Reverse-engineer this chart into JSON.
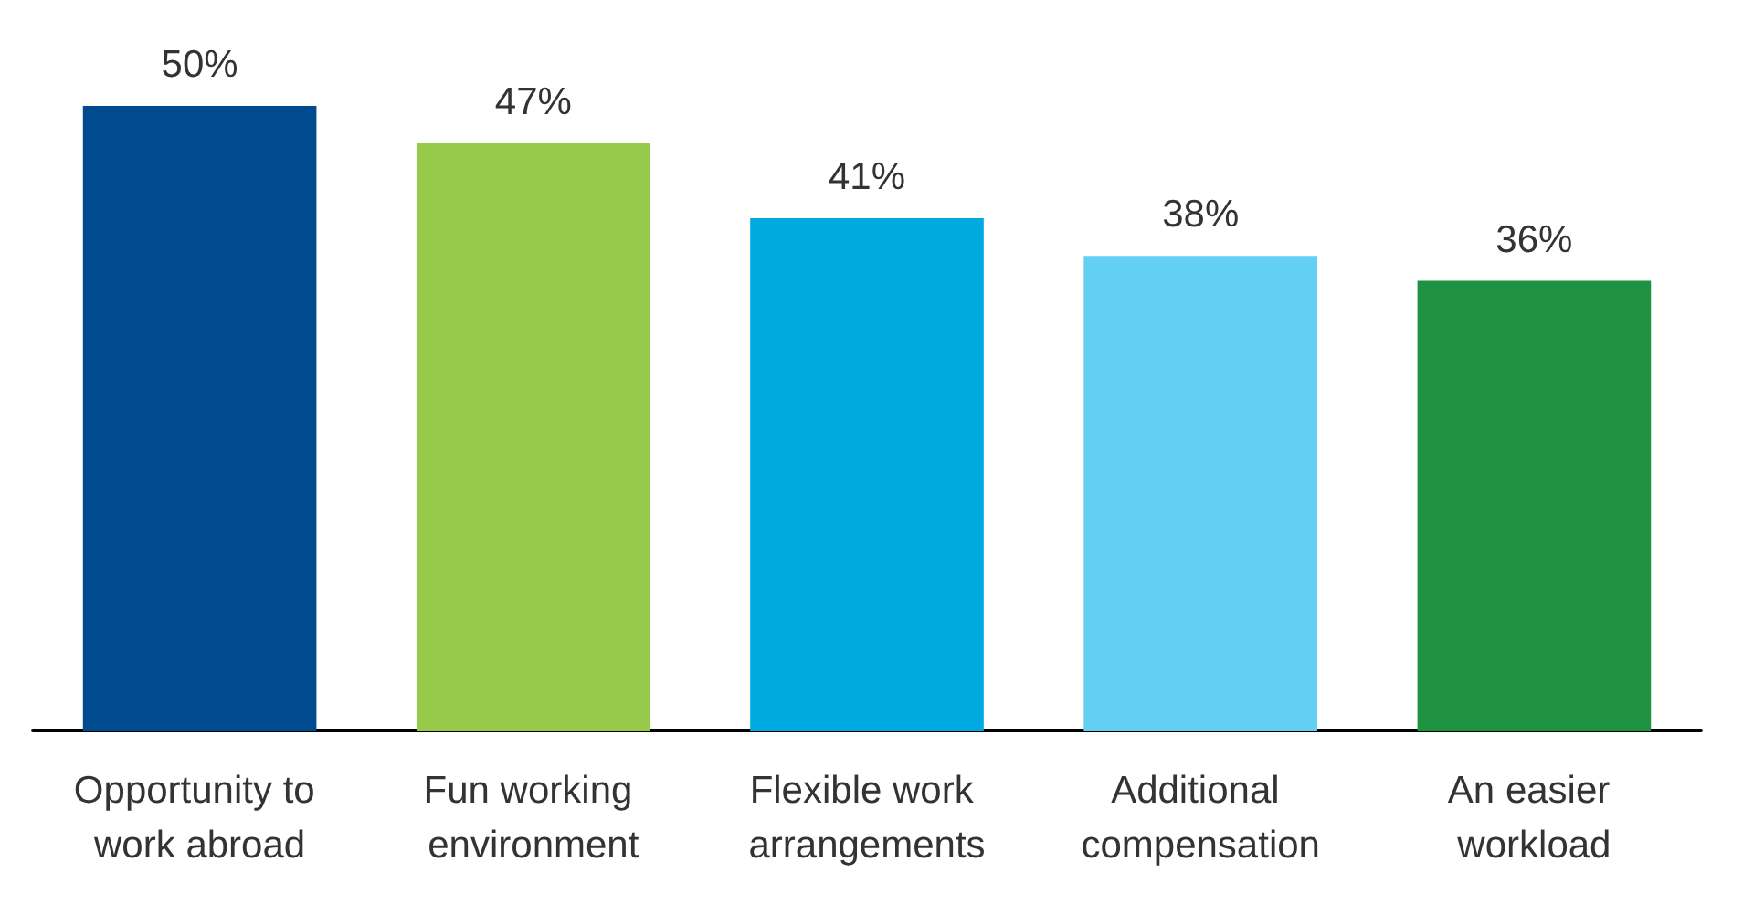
{
  "chart_data": {
    "type": "bar",
    "categories": [
      "Opportunity to work abroad",
      "Fun working environment",
      "Flexible work arrangements",
      "Additional compensation",
      "An easier workload"
    ],
    "values": [
      50,
      47,
      41,
      38,
      36
    ],
    "colors": [
      "#004a8f",
      "#97c94a",
      "#00a9e0",
      "#63cff3",
      "#1e9240"
    ],
    "value_labels": [
      "50%",
      "47%",
      "41%",
      "38%",
      "36%"
    ]
  }
}
